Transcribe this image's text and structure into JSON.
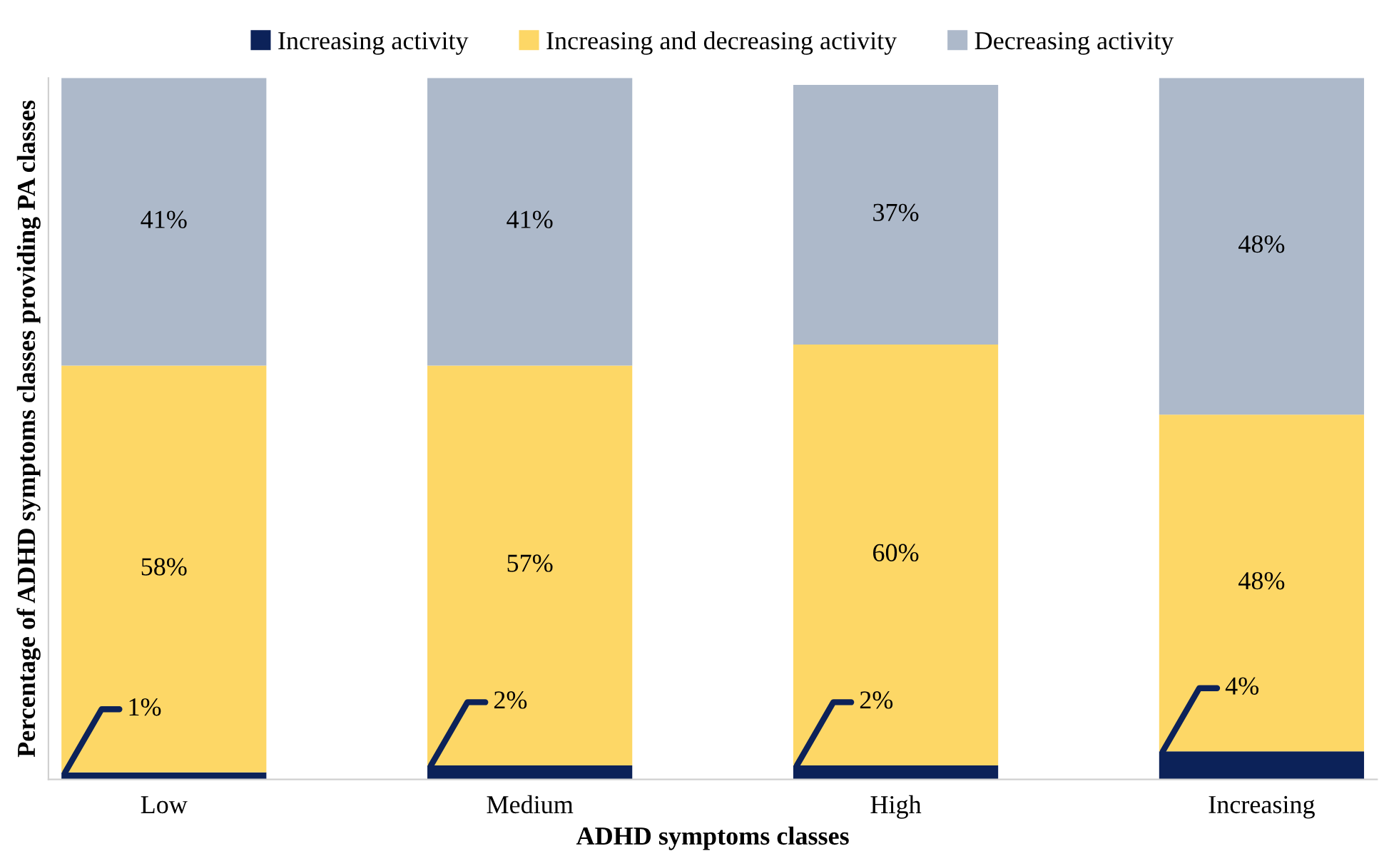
{
  "chart_data": {
    "type": "bar",
    "stacked": true,
    "xlabel": "ADHD symptoms classes",
    "ylabel": "Percentage of ADHD symptoms classes providing PA classes",
    "categories": [
      "Low",
      "Medium",
      "High",
      "Increasing"
    ],
    "series": [
      {
        "name": "Increasing activity",
        "color": "#0c2259",
        "values": [
          1,
          2,
          2,
          4
        ],
        "value_labels": [
          "1%",
          "2%",
          "2%",
          "4%"
        ]
      },
      {
        "name": "Increasing and decreasing activity",
        "color": "#fdd766",
        "values": [
          58,
          57,
          60,
          48
        ],
        "value_labels": [
          "58%",
          "57%",
          "60%",
          "48%"
        ]
      },
      {
        "name": "Decreasing activity",
        "color": "#adb9ca",
        "values": [
          41,
          41,
          37,
          48
        ],
        "value_labels": [
          "41%",
          "41%",
          "37%",
          "48%"
        ]
      }
    ],
    "legend": "top",
    "tick_labels": "x"
  }
}
